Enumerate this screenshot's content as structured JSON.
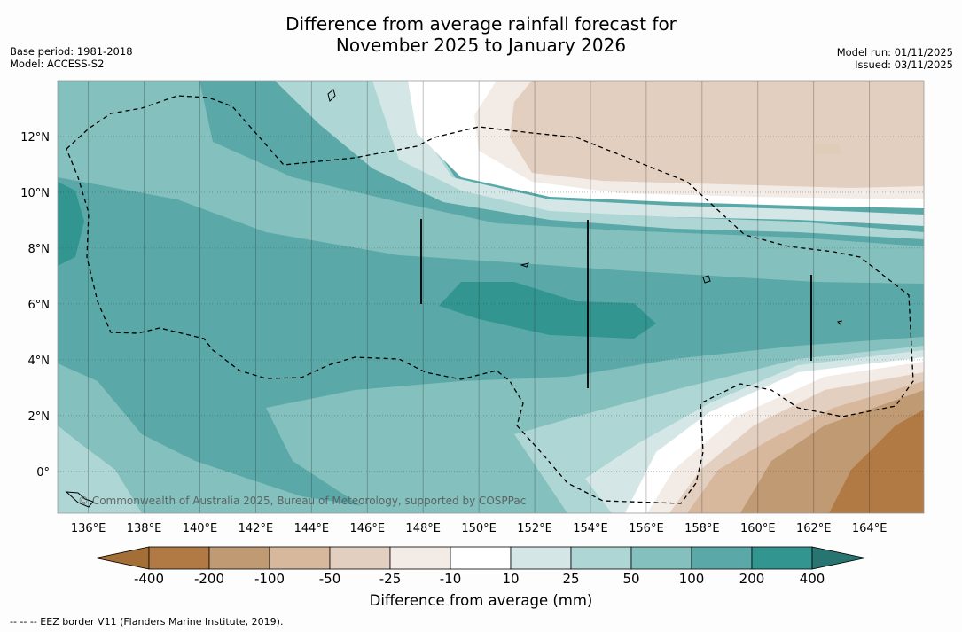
{
  "header": {
    "title_line1": "Difference from average rainfall forecast for",
    "title_line2": "November 2025 to January 2026",
    "base_period": "Base period: 1981-2018",
    "model": "Model: ACCESS-S2",
    "model_run": "Model run: 01/11/2025",
    "issued": "Issued: 03/11/2025"
  },
  "watermark": "© Commonwealth of Australia 2025, Bureau of Meteorology, supported by COSPPac",
  "footnote": "--  --  -- EEZ border V11 (Flanders Marine Institute, 2019).",
  "colors": {
    "lt_m400": "#a46f36",
    "m400_m200": "#b17a45",
    "m200_m100": "#c09a72",
    "m100_m50": "#d7b89d",
    "m50_m25": "#e3cfbf",
    "m25_m10": "#f2ebe6",
    "m10_10": "#ffffff",
    "p10_25": "#d4e7e6",
    "p25_50": "#aed6d4",
    "p50_100": "#84c0bd",
    "p100_200": "#5aa9a8",
    "p200_400": "#33958f",
    "gt_400": "#287470"
  },
  "chart_data": {
    "type": "heatmap",
    "title": "Difference from average rainfall forecast for November 2025 to January 2026",
    "colorbar_label": "Difference from average (mm)",
    "colorbar_ticks": [
      "-400",
      "-200",
      "-100",
      "-50",
      "-25",
      "-10",
      "10",
      "25",
      "50",
      "100",
      "200",
      "400"
    ],
    "x_ticks": [
      "136°E",
      "138°E",
      "140°E",
      "142°E",
      "144°E",
      "146°E",
      "148°E",
      "150°E",
      "152°E",
      "154°E",
      "156°E",
      "158°E",
      "160°E",
      "162°E",
      "164°E"
    ],
    "x_values": [
      136,
      138,
      140,
      142,
      144,
      146,
      148,
      150,
      152,
      154,
      156,
      158,
      160,
      162,
      164
    ],
    "y_ticks": [
      "12°N",
      "10°N",
      "8°N",
      "6°N",
      "4°N",
      "2°N",
      "0°"
    ],
    "y_values": [
      12,
      10,
      8,
      6,
      4,
      2,
      0
    ],
    "xlim": [
      134.9,
      165.95
    ],
    "ylim": [
      -1.5,
      14
    ],
    "summary": [
      {
        "region": "Most of the map (west and central)",
        "category": "100 to 200"
      },
      {
        "region": "Band near 5-6°N, 149-156°E",
        "category": "200 to 400"
      },
      {
        "region": "North-east (10-13°N, 151-166°E)",
        "category": "-50 to -25"
      },
      {
        "region": "South-east corner (0-3°N, 160-166°E)",
        "category": "-200 to -400"
      }
    ]
  }
}
